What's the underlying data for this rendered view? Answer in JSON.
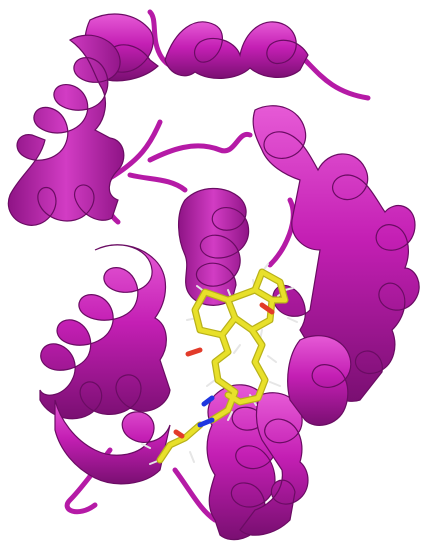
{
  "image": {
    "kind": "protein-ribbon-cartoon-with-bound-ligand",
    "background_color": "#ffffff",
    "colors": {
      "ribbon_main": "#c41fb4",
      "ribbon_light": "#e04ad0",
      "ribbon_dark": "#7a0f72",
      "ligand_carbon": "#e8e02a",
      "ligand_carbon_dark": "#b9b21a",
      "ligand_oxygen": "#e23b2a",
      "ligand_nitrogen": "#1f36e0",
      "ligand_hydrogen": "#e6e6e6"
    }
  }
}
